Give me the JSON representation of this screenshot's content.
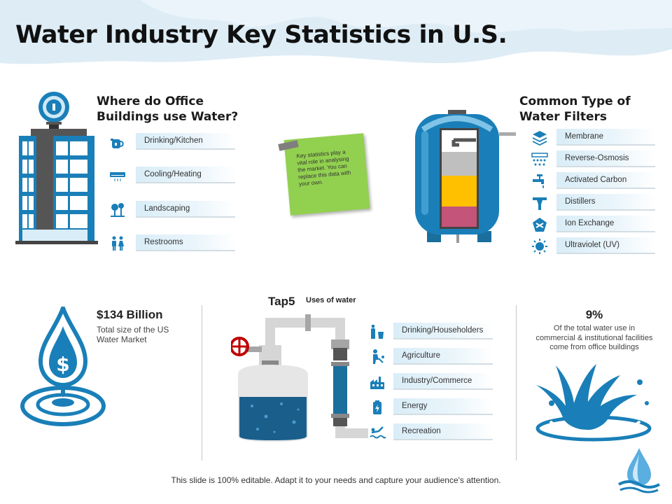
{
  "title": "Water Industry Key Statistics in U.S.",
  "office": {
    "heading_line1": "Where do Office",
    "heading_line2": "Buildings use Water?",
    "items": [
      {
        "label": "Drinking/Kitchen",
        "icon": "kettle-icon"
      },
      {
        "label": "Cooling/Heating",
        "icon": "air-conditioner-icon"
      },
      {
        "label": "Landscaping",
        "icon": "trees-icon"
      },
      {
        "label": "Restrooms",
        "icon": "people-icon"
      }
    ]
  },
  "note": {
    "text": "Key statistics play a vital role in analysing the market. You can replace this data with your own."
  },
  "filters": {
    "heading_line1": "Common Type of",
    "heading_line2": "Water Filters",
    "items": [
      {
        "label": "Membrane",
        "icon": "layers-icon"
      },
      {
        "label": "Reverse-Osmosis",
        "icon": "osmosis-icon"
      },
      {
        "label": "Activated Carbon",
        "icon": "faucet-icon"
      },
      {
        "label": "Distillers",
        "icon": "distiller-icon"
      },
      {
        "label": "Ion Exchange",
        "icon": "ion-exchange-icon"
      },
      {
        "label": "Ultraviolet (UV)",
        "icon": "sun-icon"
      }
    ]
  },
  "market": {
    "value": "$134 Billion",
    "desc_line1": "Total size of the US",
    "desc_line2": "Water Market"
  },
  "tap": {
    "label": "Tap5",
    "uses_title": "Uses of water",
    "items": [
      {
        "label": "Drinking/Householders",
        "icon": "bottle-glass-icon"
      },
      {
        "label": "Agriculture",
        "icon": "farmer-icon"
      },
      {
        "label": "Industry/Commerce",
        "icon": "factory-icon"
      },
      {
        "label": "Energy",
        "icon": "battery-icon"
      },
      {
        "label": "Recreation",
        "icon": "swimmer-icon"
      }
    ]
  },
  "office_share": {
    "value": "9%",
    "desc_line1": "Of the total water use in",
    "desc_line2": "commercial & institutional facilities",
    "desc_line3": "come from office buildings"
  },
  "footer": "This slide is 100% editable. Adapt it to your needs and capture your audience's attention.",
  "colors": {
    "primary_blue": "#1a7fb8",
    "light_blue": "#d9edf8",
    "note_green": "#92d050",
    "tank_yellow": "#ffc000",
    "tank_pink": "#c4547a"
  }
}
